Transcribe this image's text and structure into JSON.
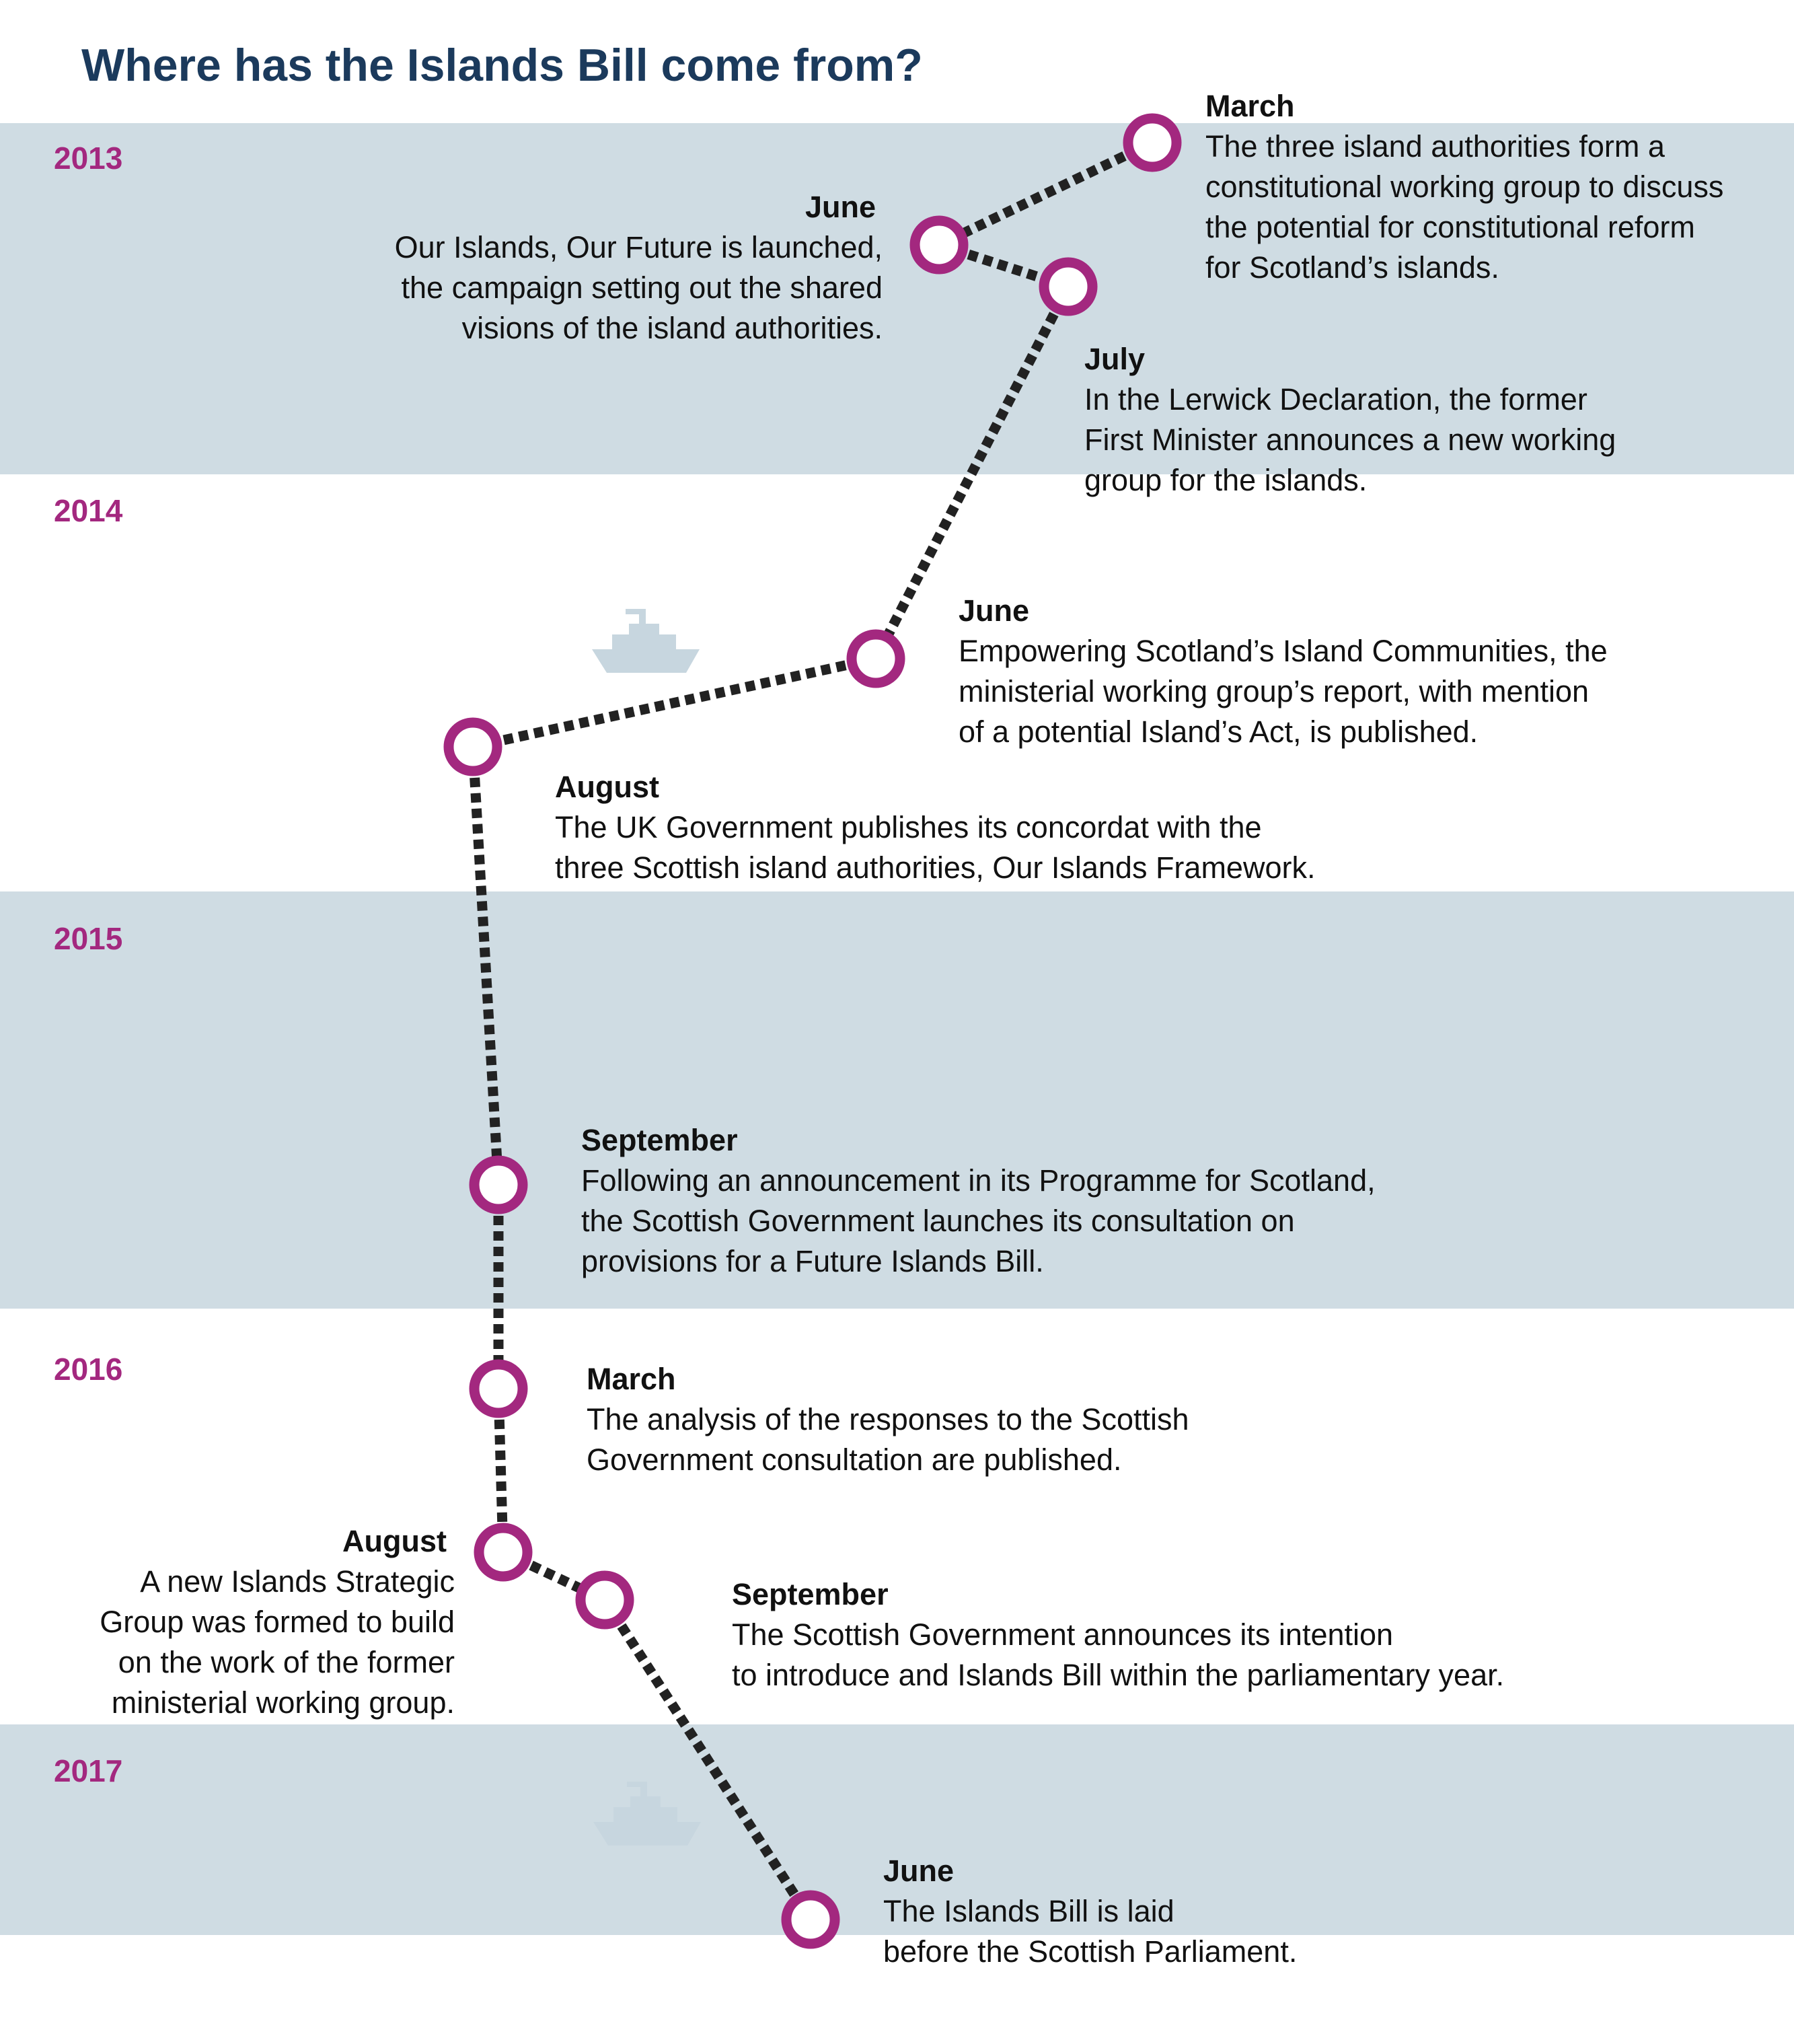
{
  "title": "Where has the Islands Bill come from?",
  "years": [
    "2013",
    "2014",
    "2015",
    "2016",
    "2017"
  ],
  "colors": {
    "band": "#cfdce3",
    "accent": "#a3287f",
    "title": "#1b3a5c",
    "connector": "#222222",
    "ship": "#c7d6df"
  },
  "icons": [
    "ship-icon",
    "ship-icon"
  ],
  "events": [
    {
      "month": "March",
      "text": "The three island authorities form a\nconstitutional working group to discuss\nthe potential for constitutional reform\nfor Scotland’s islands."
    },
    {
      "month": "June",
      "text": "Our Islands, Our Future is launched,\nthe campaign setting out the shared\nvisions of the island authorities."
    },
    {
      "month": "July",
      "text": "In the Lerwick Declaration, the former\nFirst Minister announces a new working\ngroup for the islands."
    },
    {
      "month": "June",
      "text": "Empowering Scotland’s Island Communities, the\nministerial working group’s report, with mention\nof a potential Island’s Act, is published."
    },
    {
      "month": "August",
      "text": "The UK Government publishes its concordat with the\nthree Scottish island authorities, Our Islands Framework."
    },
    {
      "month": "September",
      "text": "Following an announcement in its Programme for Scotland,\nthe Scottish Government launches its consultation on\nprovisions for a Future Islands Bill."
    },
    {
      "month": "March",
      "text": "The analysis of the responses to the Scottish\nGovernment consultation are published."
    },
    {
      "month": "August",
      "text": "A new Islands Strategic\nGroup was formed to build\non the work of the former\nministerial working group."
    },
    {
      "month": "September",
      "text": "The Scottish Government announces its intention\nto introduce and Islands Bill within the parliamentary year."
    },
    {
      "month": "June",
      "text": "The Islands Bill is laid\nbefore the Scottish Parliament."
    }
  ]
}
